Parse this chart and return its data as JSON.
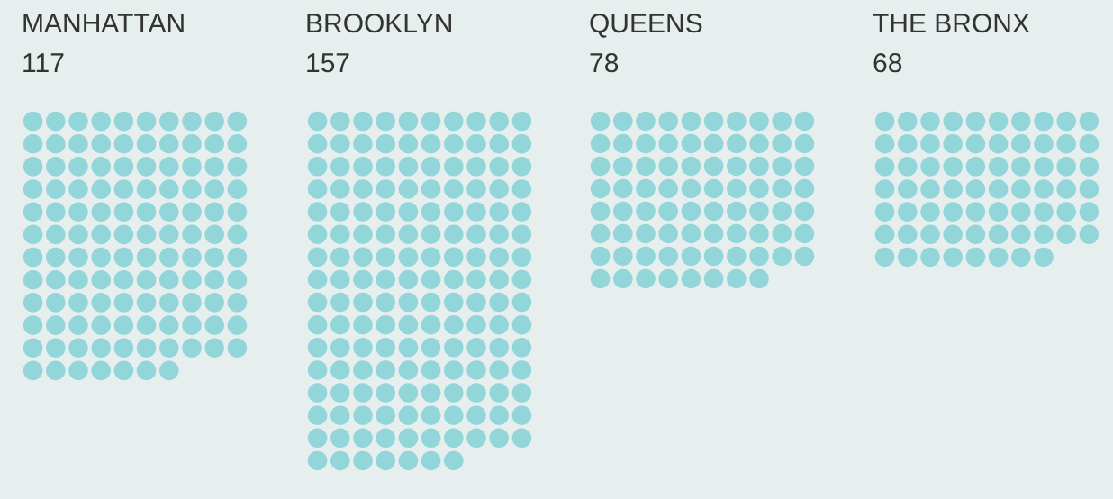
{
  "chart_data": {
    "type": "other",
    "categories": [
      "MANHATTAN",
      "BROOKLYN",
      "QUEENS",
      "THE BRONX"
    ],
    "values": [
      117,
      157,
      78,
      68
    ],
    "color": "#7ecfd4",
    "data_labels": true
  }
}
